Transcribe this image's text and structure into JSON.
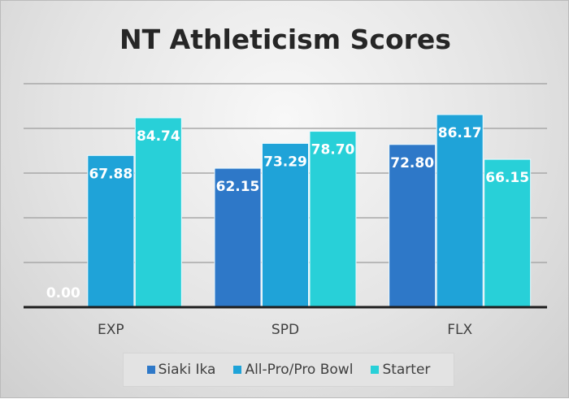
{
  "chart_data": {
    "type": "bar",
    "title": "NT Athleticism Scores",
    "categories": [
      "EXP",
      "SPD",
      "FLX"
    ],
    "series": [
      {
        "name": "Siaki Ika",
        "values": [
          0.0,
          62.15,
          72.8
        ],
        "color": "#2e78c8"
      },
      {
        "name": "All-Pro/Pro Bowl",
        "values": [
          67.88,
          73.29,
          86.17
        ],
        "color": "#1fa3d8"
      },
      {
        "name": "Starter",
        "values": [
          84.74,
          78.7,
          66.15
        ],
        "color": "#28d0d8"
      }
    ],
    "ylim": [
      0,
      100
    ],
    "yticks": [
      20,
      40,
      60,
      80,
      100
    ],
    "grid": true,
    "y_tick_labels_shown": false,
    "legend": "bottom",
    "data_labels": true
  }
}
